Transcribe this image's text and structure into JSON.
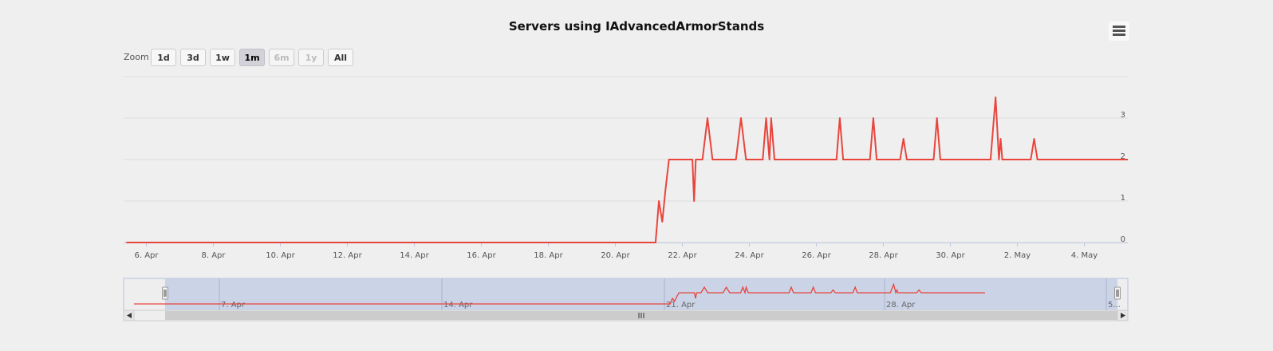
{
  "title": "Servers using IAdvancedArmorStands",
  "menu": {
    "icon": "hamburger-menu-icon"
  },
  "zoom": {
    "label": "Zoom",
    "buttons": [
      {
        "label": "1d",
        "state": "normal"
      },
      {
        "label": "3d",
        "state": "normal"
      },
      {
        "label": "1w",
        "state": "normal"
      },
      {
        "label": "1m",
        "state": "selected"
      },
      {
        "label": "6m",
        "state": "disabled"
      },
      {
        "label": "1y",
        "state": "disabled"
      },
      {
        "label": "All",
        "state": "normal"
      }
    ]
  },
  "colors": {
    "series": "#e8453c",
    "navigator_mask": "#c7cfe6",
    "grid": "#dcdcdc",
    "axis_text": "#555555"
  },
  "chart_data": {
    "type": "line",
    "title": "Servers using IAdvancedArmorStands",
    "x_tick_labels": [
      "6. Apr",
      "8. Apr",
      "10. Apr",
      "12. Apr",
      "14. Apr",
      "16. Apr",
      "18. Apr",
      "20. Apr",
      "22. Apr",
      "24. Apr",
      "26. Apr",
      "28. Apr",
      "30. Apr",
      "2. May",
      "4. May"
    ],
    "y_tick_labels": [
      "0",
      "1",
      "2",
      "3"
    ],
    "ylim": [
      0,
      4
    ],
    "grid": true,
    "x_unit": "days since 6. Apr",
    "series": [
      {
        "name": "",
        "points": [
          [
            -0.6,
            0
          ],
          [
            15.2,
            0
          ],
          [
            15.3,
            1
          ],
          [
            15.4,
            0.5
          ],
          [
            15.5,
            1.3
          ],
          [
            15.6,
            2
          ],
          [
            16.3,
            2
          ],
          [
            16.35,
            1
          ],
          [
            16.4,
            2
          ],
          [
            16.6,
            2
          ],
          [
            16.75,
            3
          ],
          [
            16.9,
            2
          ],
          [
            17.6,
            2
          ],
          [
            17.75,
            3
          ],
          [
            17.9,
            2
          ],
          [
            18.4,
            2
          ],
          [
            18.5,
            3
          ],
          [
            18.6,
            2
          ],
          [
            18.65,
            3
          ],
          [
            18.75,
            2
          ],
          [
            20.6,
            2
          ],
          [
            20.7,
            3
          ],
          [
            20.8,
            2
          ],
          [
            21.6,
            2
          ],
          [
            21.7,
            3
          ],
          [
            21.8,
            2
          ],
          [
            22.5,
            2
          ],
          [
            22.6,
            2.5
          ],
          [
            22.7,
            2
          ],
          [
            23.5,
            2
          ],
          [
            23.6,
            3
          ],
          [
            23.7,
            2
          ],
          [
            25.2,
            2
          ],
          [
            25.35,
            3.5
          ],
          [
            25.45,
            2
          ],
          [
            25.5,
            2.5
          ],
          [
            25.55,
            2
          ],
          [
            26.4,
            2
          ],
          [
            26.5,
            2.5
          ],
          [
            26.6,
            2
          ],
          [
            29.5,
            2
          ]
        ]
      }
    ],
    "navigator": {
      "x_tick_labels": [
        "7. Apr",
        "14. Apr",
        "21. Apr",
        "28. Apr",
        "5..."
      ]
    }
  }
}
